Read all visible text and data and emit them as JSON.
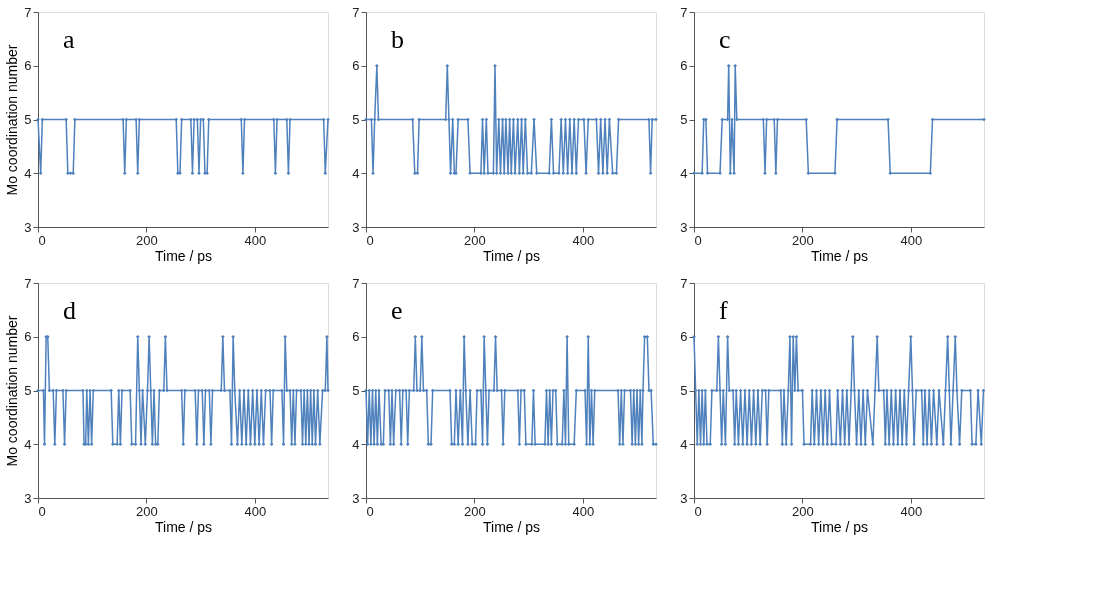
{
  "chart_data": [
    {
      "type": "line",
      "annotations": [
        "a"
      ],
      "xlabel": "Time / ps",
      "ylabel": "Mo coordination number",
      "xlim": [
        0,
        535
      ],
      "xticks": [
        0,
        200,
        400
      ],
      "ylim": [
        3,
        7
      ],
      "yticks": [
        3,
        4,
        5,
        6,
        7
      ],
      "grid": false,
      "marker": "diamond",
      "line_style": "solid",
      "series": [
        {
          "color": "#4f81bd",
          "x": [
            0,
            5,
            8,
            52,
            55,
            60,
            65,
            68,
            157,
            160,
            163,
            181,
            184,
            187,
            255,
            258,
            262,
            265,
            282,
            285,
            288,
            294,
            297,
            300,
            305,
            308,
            312,
            315,
            375,
            378,
            381,
            435,
            438,
            441,
            459,
            462,
            465,
            527,
            530,
            535
          ],
          "values": [
            5,
            4,
            5,
            5,
            4,
            4,
            4,
            5,
            5,
            4,
            5,
            5,
            4,
            5,
            5,
            4,
            4,
            5,
            5,
            4,
            5,
            5,
            4,
            5,
            5,
            4,
            4,
            5,
            5,
            4,
            5,
            5,
            4,
            5,
            5,
            4,
            5,
            5,
            4,
            5
          ]
        }
      ]
    },
    {
      "type": "line",
      "annotations": [
        "b"
      ],
      "xlabel": "Time / ps",
      "xlim": [
        0,
        535
      ],
      "xticks": [
        0,
        200,
        400
      ],
      "ylim": [
        3,
        7
      ],
      "yticks": [
        3,
        4,
        5,
        6,
        7
      ],
      "grid": false,
      "marker": "diamond",
      "line_style": "solid",
      "series": [
        {
          "color": "#4f81bd",
          "x": [
            0,
            10,
            13,
            16,
            20,
            23,
            86,
            90,
            95,
            98,
            147,
            150,
            153,
            156,
            160,
            163,
            166,
            170,
            188,
            192,
            212,
            215,
            218,
            222,
            225,
            235,
            238,
            241,
            245,
            248,
            252,
            255,
            258,
            262,
            265,
            268,
            272,
            275,
            280,
            283,
            287,
            290,
            294,
            298,
            305,
            310,
            315,
            338,
            342,
            346,
            356,
            360,
            364,
            368,
            372,
            376,
            380,
            384,
            388,
            392,
            402,
            406,
            410,
            425,
            429,
            433,
            437,
            441,
            445,
            449,
            455,
            462,
            466,
            522,
            525,
            528,
            535
          ],
          "values": [
            5,
            5,
            4,
            5,
            6,
            5,
            5,
            4,
            4,
            5,
            5,
            6,
            5,
            4,
            5,
            4,
            4,
            5,
            5,
            4,
            4,
            5,
            4,
            5,
            4,
            4,
            6,
            4,
            5,
            4,
            5,
            4,
            5,
            4,
            5,
            4,
            5,
            4,
            5,
            4,
            5,
            4,
            5,
            4,
            4,
            5,
            4,
            4,
            5,
            4,
            4,
            5,
            4,
            5,
            4,
            5,
            4,
            5,
            4,
            5,
            5,
            4,
            5,
            5,
            4,
            5,
            4,
            5,
            4,
            5,
            4,
            4,
            5,
            5,
            4,
            5,
            5
          ]
        }
      ]
    },
    {
      "type": "line",
      "annotations": [
        "c"
      ],
      "xlabel": "Time / ps",
      "xlim": [
        0,
        535
      ],
      "xticks": [
        0,
        200,
        400
      ],
      "ylim": [
        3,
        7
      ],
      "yticks": [
        3,
        4,
        5,
        6,
        7
      ],
      "grid": false,
      "marker": "diamond",
      "line_style": "solid",
      "series": [
        {
          "color": "#4f81bd",
          "x": [
            0,
            15,
            18,
            22,
            25,
            48,
            52,
            62,
            64,
            67,
            70,
            74,
            76,
            79,
            128,
            131,
            134,
            148,
            151,
            154,
            207,
            211,
            260,
            264,
            358,
            362,
            436,
            440,
            535
          ],
          "values": [
            4,
            4,
            5,
            5,
            4,
            4,
            5,
            5,
            6,
            4,
            5,
            4,
            6,
            5,
            5,
            4,
            5,
            5,
            4,
            5,
            5,
            4,
            4,
            5,
            5,
            4,
            4,
            5,
            5
          ]
        }
      ]
    },
    {
      "type": "line",
      "annotations": [
        "d"
      ],
      "xlabel": "Time / ps",
      "ylabel": "Mo coordination number",
      "xlim": [
        0,
        535
      ],
      "xticks": [
        0,
        200,
        400
      ],
      "ylim": [
        3,
        7
      ],
      "yticks": [
        3,
        4,
        5,
        6,
        7
      ],
      "grid": false,
      "marker": "diamond",
      "line_style": "solid",
      "series": [
        {
          "color": "#4f81bd",
          "x": [
            0,
            10,
            12,
            15,
            18,
            21,
            28,
            31,
            34,
            46,
            49,
            52,
            83,
            85,
            88,
            90,
            93,
            96,
            99,
            102,
            135,
            138,
            146,
            149,
            152,
            155,
            170,
            173,
            180,
            184,
            187,
            190,
            193,
            198,
            202,
            205,
            208,
            211,
            214,
            217,
            221,
            224,
            232,
            235,
            238,
            265,
            268,
            271,
            290,
            293,
            296,
            303,
            306,
            309,
            316,
            319,
            322,
            338,
            341,
            344,
            354,
            357,
            360,
            363,
            368,
            372,
            376,
            380,
            384,
            388,
            392,
            396,
            400,
            404,
            408,
            412,
            416,
            420,
            428,
            431,
            434,
            450,
            453,
            456,
            459,
            465,
            468,
            471,
            474,
            477,
            485,
            488,
            491,
            494,
            497,
            500,
            503,
            506,
            509,
            512,
            516,
            520,
            525,
            530,
            533,
            535
          ],
          "values": [
            5,
            5,
            4,
            6,
            6,
            5,
            5,
            4,
            5,
            5,
            4,
            5,
            5,
            4,
            4,
            5,
            4,
            5,
            4,
            5,
            5,
            4,
            4,
            5,
            4,
            5,
            5,
            4,
            4,
            6,
            5,
            4,
            5,
            4,
            5,
            6,
            5,
            4,
            5,
            4,
            4,
            5,
            5,
            6,
            5,
            5,
            4,
            5,
            5,
            4,
            5,
            5,
            4,
            5,
            5,
            4,
            5,
            5,
            6,
            5,
            5,
            4,
            6,
            5,
            4,
            5,
            4,
            5,
            4,
            5,
            4,
            5,
            4,
            5,
            4,
            5,
            4,
            5,
            5,
            4,
            5,
            5,
            4,
            6,
            5,
            5,
            4,
            5,
            4,
            5,
            5,
            4,
            5,
            4,
            5,
            4,
            5,
            4,
            5,
            4,
            5,
            4,
            5,
            5,
            6,
            5
          ]
        }
      ]
    },
    {
      "type": "line",
      "annotations": [
        "e"
      ],
      "xlabel": "Time / ps",
      "xlim": [
        0,
        535
      ],
      "xticks": [
        0,
        200,
        400
      ],
      "ylim": [
        3,
        7
      ],
      "yticks": [
        3,
        4,
        5,
        6,
        7
      ],
      "grid": false,
      "marker": "diamond",
      "line_style": "solid",
      "series": [
        {
          "color": "#4f81bd",
          "x": [
            0,
            3,
            6,
            9,
            12,
            15,
            18,
            21,
            24,
            28,
            32,
            35,
            42,
            45,
            48,
            51,
            55,
            62,
            65,
            68,
            74,
            77,
            80,
            88,
            91,
            94,
            100,
            103,
            106,
            112,
            115,
            120,
            123,
            155,
            158,
            163,
            166,
            170,
            174,
            178,
            181,
            184,
            188,
            192,
            196,
            202,
            205,
            212,
            215,
            218,
            221,
            224,
            227,
            236,
            239,
            242,
            250,
            253,
            256,
            280,
            283,
            286,
            292,
            295,
            306,
            309,
            312,
            330,
            333,
            336,
            339,
            342,
            345,
            350,
            353,
            362,
            365,
            368,
            371,
            374,
            384,
            388,
            404,
            407,
            410,
            413,
            416,
            419,
            422,
            465,
            468,
            471,
            474,
            477,
            488,
            491,
            494,
            497,
            500,
            503,
            506,
            509,
            511,
            514,
            519,
            522,
            526,
            530,
            535
          ],
          "values": [
            5,
            4,
            5,
            4,
            5,
            4,
            5,
            4,
            5,
            4,
            4,
            5,
            5,
            4,
            5,
            4,
            5,
            5,
            4,
            5,
            5,
            4,
            5,
            5,
            6,
            5,
            5,
            6,
            5,
            5,
            4,
            4,
            5,
            5,
            4,
            4,
            5,
            4,
            5,
            4,
            6,
            5,
            4,
            5,
            4,
            4,
            5,
            5,
            4,
            6,
            5,
            4,
            5,
            5,
            6,
            5,
            5,
            4,
            5,
            5,
            4,
            5,
            5,
            4,
            4,
            5,
            4,
            4,
            5,
            4,
            5,
            4,
            5,
            5,
            4,
            4,
            5,
            4,
            6,
            4,
            4,
            5,
            5,
            4,
            6,
            4,
            5,
            4,
            5,
            5,
            4,
            5,
            4,
            5,
            5,
            4,
            5,
            4,
            5,
            4,
            5,
            4,
            5,
            6,
            6,
            5,
            5,
            4,
            4
          ]
        }
      ]
    },
    {
      "type": "line",
      "annotations": [
        "f"
      ],
      "xlabel": "Time / ps",
      "xlim": [
        0,
        535
      ],
      "xticks": [
        0,
        200,
        400
      ],
      "ylim": [
        3,
        7
      ],
      "yticks": [
        3,
        4,
        5,
        6,
        7
      ],
      "grid": false,
      "marker": "diamond",
      "line_style": "solid",
      "series": [
        {
          "color": "#4f81bd",
          "x": [
            0,
            3,
            6,
            9,
            12,
            15,
            18,
            21,
            24,
            30,
            33,
            42,
            45,
            48,
            51,
            54,
            58,
            62,
            65,
            72,
            75,
            78,
            82,
            86,
            90,
            94,
            98,
            102,
            106,
            110,
            114,
            118,
            122,
            126,
            132,
            135,
            138,
            160,
            163,
            166,
            170,
            174,
            177,
            180,
            183,
            186,
            189,
            192,
            200,
            203,
            215,
            218,
            222,
            226,
            230,
            234,
            238,
            242,
            246,
            250,
            254,
            262,
            265,
            270,
            274,
            278,
            282,
            286,
            290,
            293,
            296,
            300,
            304,
            308,
            312,
            316,
            320,
            330,
            334,
            338,
            341,
            350,
            353,
            356,
            360,
            364,
            368,
            372,
            376,
            380,
            384,
            388,
            392,
            396,
            400,
            403,
            406,
            410,
            420,
            423,
            426,
            430,
            434,
            438,
            442,
            448,
            452,
            460,
            464,
            468,
            471,
            474,
            478,
            482,
            485,
            490,
            494,
            510,
            513,
            520,
            524,
            530,
            534
          ],
          "values": [
            6,
            5,
            4,
            5,
            4,
            5,
            4,
            5,
            4,
            4,
            5,
            5,
            6,
            5,
            4,
            5,
            4,
            6,
            5,
            5,
            4,
            5,
            4,
            5,
            4,
            5,
            4,
            5,
            4,
            5,
            4,
            5,
            4,
            5,
            5,
            4,
            5,
            5,
            4,
            5,
            4,
            5,
            6,
            4,
            6,
            5,
            6,
            5,
            5,
            4,
            4,
            5,
            4,
            5,
            4,
            5,
            4,
            5,
            4,
            5,
            4,
            4,
            5,
            4,
            5,
            4,
            5,
            4,
            5,
            6,
            5,
            4,
            5,
            4,
            5,
            4,
            5,
            4,
            5,
            6,
            5,
            5,
            4,
            5,
            4,
            5,
            4,
            5,
            4,
            5,
            4,
            5,
            4,
            5,
            6,
            5,
            4,
            5,
            5,
            4,
            5,
            4,
            5,
            4,
            5,
            4,
            5,
            4,
            5,
            6,
            5,
            4,
            5,
            6,
            5,
            4,
            5,
            5,
            4,
            4,
            5,
            4,
            5
          ]
        }
      ]
    }
  ]
}
